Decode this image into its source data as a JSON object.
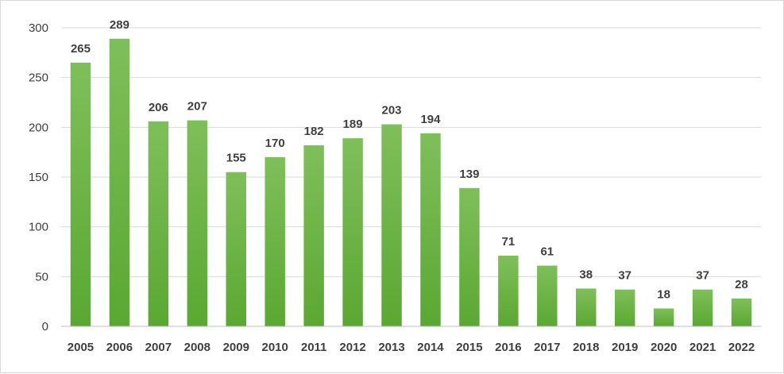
{
  "chart_data": {
    "type": "bar",
    "categories": [
      "2005",
      "2006",
      "2007",
      "2008",
      "2009",
      "2010",
      "2011",
      "2012",
      "2013",
      "2014",
      "2015",
      "2016",
      "2017",
      "2018",
      "2019",
      "2020",
      "2021",
      "2022"
    ],
    "values": [
      265,
      289,
      206,
      207,
      155,
      170,
      182,
      189,
      203,
      194,
      139,
      71,
      61,
      38,
      37,
      18,
      37,
      28
    ],
    "title": "",
    "xlabel": "",
    "ylabel": "",
    "ylim": [
      0,
      300
    ],
    "yticks": [
      0,
      50,
      100,
      150,
      200,
      250,
      300
    ],
    "grid": true,
    "legend": "none",
    "colors": {
      "bar_top": "#7fbf5a",
      "bar_bottom": "#5aa832"
    }
  }
}
